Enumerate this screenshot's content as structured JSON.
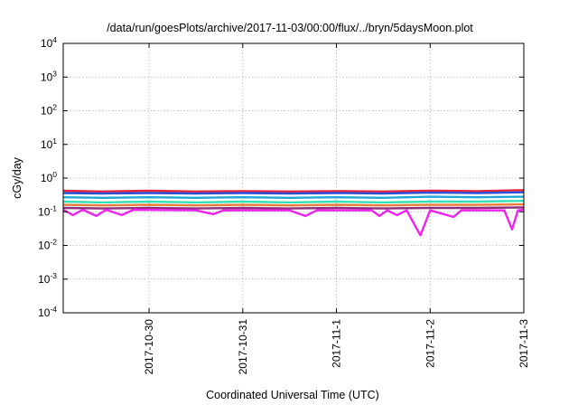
{
  "chart_data": {
    "type": "line",
    "title": "/data/run/goesPlots/archive/2017-11-03/00:00/flux/../bryn/5daysMoon.plot",
    "xlabel": "Coordinated Universal Time (UTC)",
    "ylabel": "cGy/day",
    "y_scale": "log",
    "ylim": [
      0.0001,
      10000
    ],
    "y_ticks": [
      {
        "base": "10",
        "exp": "-4",
        "value": 0.0001
      },
      {
        "base": "10",
        "exp": "-3",
        "value": 0.001
      },
      {
        "base": "10",
        "exp": "-2",
        "value": 0.01
      },
      {
        "base": "10",
        "exp": "-1",
        "value": 0.1
      },
      {
        "base": "10",
        "exp": "0",
        "value": 1
      },
      {
        "base": "10",
        "exp": "1",
        "value": 10
      },
      {
        "base": "10",
        "exp": "2",
        "value": 100
      },
      {
        "base": "10",
        "exp": "3",
        "value": 1000
      },
      {
        "base": "10",
        "exp": "4",
        "value": 10000
      }
    ],
    "xlim": [
      "2017-10-29 02:00",
      "2017-11-03 00:00"
    ],
    "x_ticks": [
      "2017-10-30",
      "2017-10-31",
      "2017-11-1",
      "2017-11-2",
      "2017-11-3"
    ],
    "x_tick_dates": [
      "2017-10-30 00:00",
      "2017-10-31 00:00",
      "2017-11-01 00:00",
      "2017-11-02 00:00",
      "2017-11-03 00:00"
    ],
    "grid": true,
    "legend": "none",
    "series": [
      {
        "color": "#e8243c",
        "values": [
          {
            "x": "2017-10-29 02:00",
            "y": 0.42
          },
          {
            "x": "2017-10-29 12:00",
            "y": 0.4
          },
          {
            "x": "2017-10-30 00:00",
            "y": 0.42
          },
          {
            "x": "2017-10-30 12:00",
            "y": 0.4
          },
          {
            "x": "2017-10-31 00:00",
            "y": 0.41
          },
          {
            "x": "2017-10-31 12:00",
            "y": 0.4
          },
          {
            "x": "2017-11-01 00:00",
            "y": 0.41
          },
          {
            "x": "2017-11-01 12:00",
            "y": 0.4
          },
          {
            "x": "2017-11-02 00:00",
            "y": 0.42
          },
          {
            "x": "2017-11-02 12:00",
            "y": 0.41
          },
          {
            "x": "2017-11-03 00:00",
            "y": 0.44
          }
        ]
      },
      {
        "color": "#2c4fd8",
        "values": [
          {
            "x": "2017-10-29 02:00",
            "y": 0.36
          },
          {
            "x": "2017-10-29 12:00",
            "y": 0.35
          },
          {
            "x": "2017-10-30 00:00",
            "y": 0.36
          },
          {
            "x": "2017-10-30 12:00",
            "y": 0.35
          },
          {
            "x": "2017-10-31 00:00",
            "y": 0.36
          },
          {
            "x": "2017-10-31 12:00",
            "y": 0.35
          },
          {
            "x": "2017-11-01 00:00",
            "y": 0.36
          },
          {
            "x": "2017-11-01 12:00",
            "y": 0.35
          },
          {
            "x": "2017-11-02 00:00",
            "y": 0.37
          },
          {
            "x": "2017-11-02 12:00",
            "y": 0.36
          },
          {
            "x": "2017-11-03 00:00",
            "y": 0.38
          }
        ]
      },
      {
        "color": "#23a8d6",
        "values": [
          {
            "x": "2017-10-29 02:00",
            "y": 0.27
          },
          {
            "x": "2017-10-29 12:00",
            "y": 0.26
          },
          {
            "x": "2017-10-30 00:00",
            "y": 0.27
          },
          {
            "x": "2017-10-30 12:00",
            "y": 0.26
          },
          {
            "x": "2017-10-31 00:00",
            "y": 0.27
          },
          {
            "x": "2017-10-31 12:00",
            "y": 0.26
          },
          {
            "x": "2017-11-01 00:00",
            "y": 0.27
          },
          {
            "x": "2017-11-01 12:00",
            "y": 0.26
          },
          {
            "x": "2017-11-02 00:00",
            "y": 0.28
          },
          {
            "x": "2017-11-02 12:00",
            "y": 0.27
          },
          {
            "x": "2017-11-03 00:00",
            "y": 0.28
          }
        ]
      },
      {
        "color": "#34e0b4",
        "values": [
          {
            "x": "2017-10-29 02:00",
            "y": 0.2
          },
          {
            "x": "2017-10-29 12:00",
            "y": 0.19
          },
          {
            "x": "2017-10-30 00:00",
            "y": 0.2
          },
          {
            "x": "2017-10-30 12:00",
            "y": 0.19
          },
          {
            "x": "2017-10-31 00:00",
            "y": 0.2
          },
          {
            "x": "2017-10-31 12:00",
            "y": 0.19
          },
          {
            "x": "2017-11-01 00:00",
            "y": 0.2
          },
          {
            "x": "2017-11-01 12:00",
            "y": 0.19
          },
          {
            "x": "2017-11-02 00:00",
            "y": 0.2
          },
          {
            "x": "2017-11-02 12:00",
            "y": 0.2
          },
          {
            "x": "2017-11-03 00:00",
            "y": 0.21
          }
        ]
      },
      {
        "color": "#e87a3a",
        "values": [
          {
            "x": "2017-10-29 02:00",
            "y": 0.16
          },
          {
            "x": "2017-10-29 12:00",
            "y": 0.155
          },
          {
            "x": "2017-10-30 00:00",
            "y": 0.16
          },
          {
            "x": "2017-10-30 12:00",
            "y": 0.155
          },
          {
            "x": "2017-10-31 00:00",
            "y": 0.16
          },
          {
            "x": "2017-10-31 12:00",
            "y": 0.155
          },
          {
            "x": "2017-11-01 00:00",
            "y": 0.16
          },
          {
            "x": "2017-11-01 12:00",
            "y": 0.155
          },
          {
            "x": "2017-11-02 00:00",
            "y": 0.16
          },
          {
            "x": "2017-11-02 12:00",
            "y": 0.16
          },
          {
            "x": "2017-11-03 00:00",
            "y": 0.165
          }
        ]
      },
      {
        "color": "#8e2d7a",
        "values": [
          {
            "x": "2017-10-29 02:00",
            "y": 0.13
          },
          {
            "x": "2017-10-29 12:00",
            "y": 0.125
          },
          {
            "x": "2017-10-30 00:00",
            "y": 0.13
          },
          {
            "x": "2017-10-30 12:00",
            "y": 0.125
          },
          {
            "x": "2017-10-31 00:00",
            "y": 0.13
          },
          {
            "x": "2017-10-31 12:00",
            "y": 0.125
          },
          {
            "x": "2017-11-01 00:00",
            "y": 0.13
          },
          {
            "x": "2017-11-01 12:00",
            "y": 0.125
          },
          {
            "x": "2017-11-02 00:00",
            "y": 0.13
          },
          {
            "x": "2017-11-02 12:00",
            "y": 0.13
          },
          {
            "x": "2017-11-03 00:00",
            "y": 0.135
          }
        ]
      },
      {
        "color": "#f022f0",
        "values": [
          {
            "x": "2017-10-29 02:00",
            "y": 0.115
          },
          {
            "x": "2017-10-29 04:30",
            "y": 0.08
          },
          {
            "x": "2017-10-29 07:00",
            "y": 0.115
          },
          {
            "x": "2017-10-29 10:30",
            "y": 0.075
          },
          {
            "x": "2017-10-29 13:00",
            "y": 0.115
          },
          {
            "x": "2017-10-29 17:00",
            "y": 0.08
          },
          {
            "x": "2017-10-29 20:00",
            "y": 0.115
          },
          {
            "x": "2017-10-30 12:00",
            "y": 0.11
          },
          {
            "x": "2017-10-30 16:30",
            "y": 0.085
          },
          {
            "x": "2017-10-30 19:00",
            "y": 0.11
          },
          {
            "x": "2017-10-31 12:00",
            "y": 0.11
          },
          {
            "x": "2017-10-31 16:00",
            "y": 0.075
          },
          {
            "x": "2017-10-31 19:00",
            "y": 0.11
          },
          {
            "x": "2017-11-01 00:00",
            "y": 0.11
          },
          {
            "x": "2017-11-01 09:00",
            "y": 0.11
          },
          {
            "x": "2017-11-01 11:00",
            "y": 0.075
          },
          {
            "x": "2017-11-01 13:00",
            "y": 0.11
          },
          {
            "x": "2017-11-01 15:30",
            "y": 0.08
          },
          {
            "x": "2017-11-01 18:00",
            "y": 0.11
          },
          {
            "x": "2017-11-01 21:30",
            "y": 0.02
          },
          {
            "x": "2017-11-02 00:00",
            "y": 0.11
          },
          {
            "x": "2017-11-02 06:00",
            "y": 0.07
          },
          {
            "x": "2017-11-02 08:00",
            "y": 0.11
          },
          {
            "x": "2017-11-02 12:00",
            "y": 0.11
          },
          {
            "x": "2017-11-02 19:00",
            "y": 0.11
          },
          {
            "x": "2017-11-02 21:00",
            "y": 0.03
          },
          {
            "x": "2017-11-02 22:30",
            "y": 0.11
          },
          {
            "x": "2017-11-03 00:00",
            "y": 0.115
          }
        ]
      }
    ]
  }
}
